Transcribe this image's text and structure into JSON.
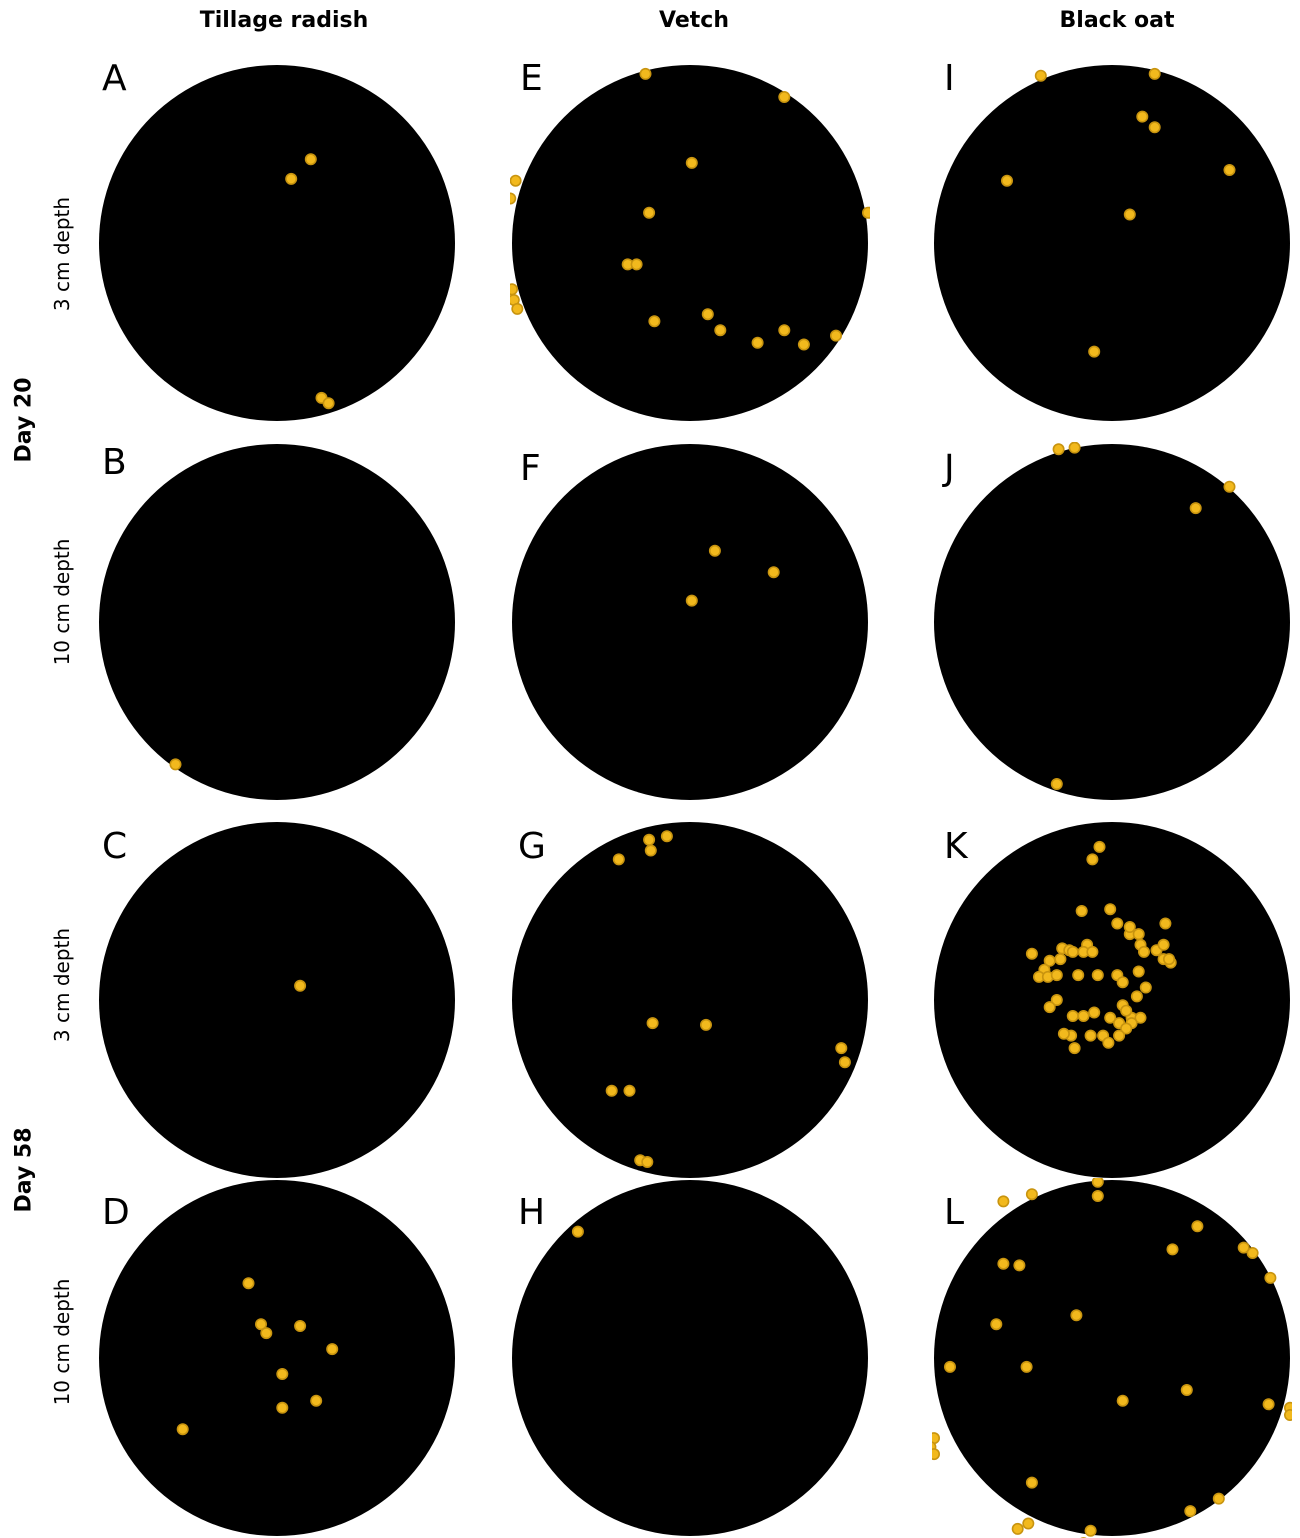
{
  "columns": [
    "Tillage radish",
    "Vetch",
    "Black oat"
  ],
  "days": [
    "Day 20",
    "Day 58"
  ],
  "depths": [
    "3 cm depth",
    "10 cm depth",
    "3 cm depth",
    "10 cm depth"
  ],
  "colors": {
    "disc": "#000000",
    "dot_fill": "#f2b91d",
    "dot_stroke": "#c8940f"
  },
  "panels": [
    {
      "letter": "A",
      "column": "Tillage radish",
      "day": "Day 20",
      "depth": "3 cm depth",
      "points": [
        [
          0.19,
          -0.47
        ],
        [
          0.08,
          -0.36
        ],
        [
          0.25,
          0.87
        ],
        [
          0.29,
          0.9
        ]
      ]
    },
    {
      "letter": "B",
      "column": "Tillage radish",
      "day": "Day 20",
      "depth": "10 cm depth",
      "points": [
        [
          -0.57,
          0.8
        ]
      ]
    },
    {
      "letter": "C",
      "column": "Tillage radish",
      "day": "Day 58",
      "depth": "3 cm depth",
      "points": [
        [
          0.13,
          -0.08
        ]
      ]
    },
    {
      "letter": "D",
      "column": "Tillage radish",
      "day": "Day 58",
      "depth": "10 cm depth",
      "points": [
        [
          -0.16,
          -0.42
        ],
        [
          -0.09,
          -0.19
        ],
        [
          -0.06,
          -0.14
        ],
        [
          0.13,
          -0.18
        ],
        [
          0.31,
          -0.05
        ],
        [
          0.03,
          0.09
        ],
        [
          0.03,
          0.28
        ],
        [
          0.22,
          0.24
        ],
        [
          -0.53,
          0.4
        ]
      ]
    },
    {
      "letter": "E",
      "column": "Vetch",
      "day": "Day 20",
      "depth": "3 cm depth",
      "points": [
        [
          -0.25,
          -0.95
        ],
        [
          0.53,
          -0.82
        ],
        [
          0.01,
          -0.45
        ],
        [
          -0.98,
          -0.35
        ],
        [
          -1.01,
          -0.25
        ],
        [
          1.01,
          -0.17
        ],
        [
          1.0,
          -0.17
        ],
        [
          -0.23,
          -0.17
        ],
        [
          -0.35,
          0.12
        ],
        [
          -0.3,
          0.12
        ],
        [
          -1.0,
          0.26
        ],
        [
          -0.99,
          0.32
        ],
        [
          -0.97,
          0.37
        ],
        [
          -0.2,
          0.44
        ],
        [
          0.1,
          0.4
        ],
        [
          0.17,
          0.49
        ],
        [
          0.38,
          0.56
        ],
        [
          0.53,
          0.49
        ],
        [
          0.64,
          0.57
        ],
        [
          0.82,
          0.52
        ]
      ]
    },
    {
      "letter": "F",
      "column": "Vetch",
      "day": "Day 20",
      "depth": "10 cm depth",
      "points": [
        [
          0.14,
          -0.4
        ],
        [
          0.47,
          -0.28
        ],
        [
          0.01,
          -0.12
        ]
      ]
    },
    {
      "letter": "G",
      "column": "Vetch",
      "day": "Day 58",
      "depth": "3 cm depth",
      "points": [
        [
          -0.4,
          -0.79
        ],
        [
          -0.23,
          -0.9
        ],
        [
          -0.22,
          -0.84
        ],
        [
          -0.13,
          -0.92
        ],
        [
          -0.21,
          0.13
        ],
        [
          0.09,
          0.14
        ],
        [
          0.85,
          0.27
        ],
        [
          0.87,
          0.35
        ],
        [
          -0.44,
          0.51
        ],
        [
          -0.34,
          0.51
        ],
        [
          -0.28,
          0.9
        ],
        [
          -0.24,
          0.91
        ]
      ]
    },
    {
      "letter": "H",
      "column": "Vetch",
      "day": "Day 58",
      "depth": "10 cm depth",
      "points": [
        [
          -0.63,
          -0.71
        ]
      ]
    },
    {
      "letter": "I",
      "column": "Black oat",
      "day": "Day 20",
      "depth": "3 cm depth",
      "points": [
        [
          -0.4,
          -0.94
        ],
        [
          0.24,
          -0.95
        ],
        [
          0.17,
          -0.71
        ],
        [
          0.24,
          -0.65
        ],
        [
          0.66,
          -0.41
        ],
        [
          -0.59,
          -0.35
        ],
        [
          0.1,
          -0.16
        ],
        [
          -0.1,
          0.61
        ]
      ]
    },
    {
      "letter": "J",
      "column": "Black oat",
      "day": "Day 20",
      "depth": "10 cm depth",
      "points": [
        [
          -0.3,
          -0.97
        ],
        [
          -0.21,
          -0.98
        ],
        [
          0.47,
          -0.64
        ],
        [
          0.66,
          -0.76
        ],
        [
          -0.31,
          0.91
        ]
      ]
    },
    {
      "letter": "K",
      "column": "Black oat",
      "day": "Day 58",
      "depth": "3 cm depth",
      "points": [
        [
          -0.07,
          -0.86
        ],
        [
          -0.11,
          -0.79
        ],
        [
          -0.17,
          -0.5
        ],
        [
          -0.01,
          -0.51
        ],
        [
          0.03,
          -0.43
        ],
        [
          0.1,
          -0.37
        ],
        [
          0.1,
          -0.41
        ],
        [
          0.15,
          -0.37
        ],
        [
          0.16,
          -0.31
        ],
        [
          0.3,
          -0.43
        ],
        [
          0.18,
          -0.27
        ],
        [
          0.25,
          -0.28
        ],
        [
          0.29,
          -0.31
        ],
        [
          -0.14,
          -0.31
        ],
        [
          -0.28,
          -0.29
        ],
        [
          -0.45,
          -0.26
        ],
        [
          -0.29,
          -0.23
        ],
        [
          -0.24,
          -0.28
        ],
        [
          -0.22,
          -0.27
        ],
        [
          -0.16,
          -0.27
        ],
        [
          -0.11,
          -0.27
        ],
        [
          -0.35,
          -0.22
        ],
        [
          -0.38,
          -0.17
        ],
        [
          -0.41,
          -0.13
        ],
        [
          -0.36,
          -0.13
        ],
        [
          -0.31,
          -0.14
        ],
        [
          -0.19,
          -0.14
        ],
        [
          -0.08,
          -0.14
        ],
        [
          0.03,
          -0.14
        ],
        [
          0.29,
          -0.23
        ],
        [
          0.33,
          -0.21
        ],
        [
          0.32,
          -0.23
        ],
        [
          0.15,
          -0.16
        ],
        [
          0.06,
          -0.1
        ],
        [
          -0.31,
          0.0
        ],
        [
          -0.35,
          0.04
        ],
        [
          -0.22,
          0.09
        ],
        [
          -0.16,
          0.09
        ],
        [
          -0.1,
          0.07
        ],
        [
          -0.01,
          0.1
        ],
        [
          0.06,
          0.03
        ],
        [
          0.04,
          0.13
        ],
        [
          0.11,
          0.1
        ],
        [
          0.16,
          0.1
        ],
        [
          0.19,
          -0.07
        ],
        [
          0.14,
          -0.02
        ],
        [
          0.08,
          0.06
        ],
        [
          0.11,
          0.13
        ],
        [
          0.08,
          0.16
        ],
        [
          0.04,
          0.2
        ],
        [
          -0.05,
          0.2
        ],
        [
          -0.23,
          0.2
        ],
        [
          -0.27,
          0.19
        ],
        [
          -0.21,
          0.27
        ],
        [
          -0.12,
          0.2
        ],
        [
          -0.02,
          0.24
        ]
      ]
    },
    {
      "letter": "L",
      "column": "Black oat",
      "day": "Day 58",
      "depth": "10 cm depth",
      "points": [
        [
          -0.61,
          -0.88
        ],
        [
          -0.45,
          -0.92
        ],
        [
          -0.08,
          -0.99
        ],
        [
          -0.08,
          -0.91
        ],
        [
          0.48,
          -0.74
        ],
        [
          0.34,
          -0.61
        ],
        [
          0.74,
          -0.62
        ],
        [
          0.79,
          -0.59
        ],
        [
          0.89,
          -0.45
        ],
        [
          -0.61,
          -0.53
        ],
        [
          -0.52,
          -0.52
        ],
        [
          -0.65,
          -0.19
        ],
        [
          -0.48,
          0.05
        ],
        [
          -0.2,
          -0.24
        ],
        [
          -0.91,
          0.05
        ],
        [
          0.06,
          0.24
        ],
        [
          0.42,
          0.18
        ],
        [
          0.88,
          0.26
        ],
        [
          1.0,
          0.28
        ],
        [
          1.0,
          0.32
        ],
        [
          -1.0,
          0.45
        ],
        [
          -1.02,
          0.5
        ],
        [
          -1.0,
          0.54
        ],
        [
          -0.45,
          0.7
        ],
        [
          0.44,
          0.86
        ],
        [
          -0.47,
          0.93
        ],
        [
          -0.53,
          0.96
        ],
        [
          -0.12,
          0.97
        ],
        [
          -0.16,
          1.04
        ],
        [
          0.6,
          0.79
        ]
      ]
    }
  ]
}
